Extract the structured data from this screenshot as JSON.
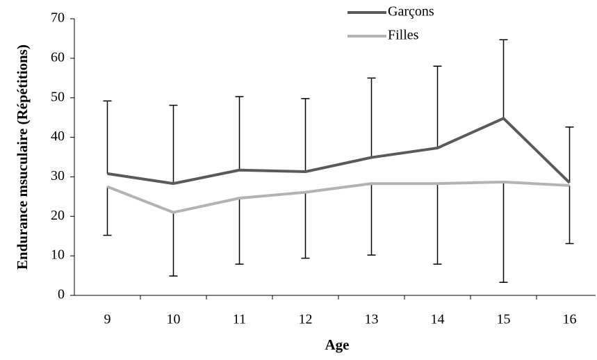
{
  "chart_data": {
    "type": "line",
    "x_label": "Age",
    "y_label": "Endurance msuculaire (Répétitions)",
    "categories": [
      "9",
      "10",
      "11",
      "12",
      "13",
      "14",
      "15",
      "16"
    ],
    "series": [
      {
        "name": "Garçons",
        "color": "#5a5a5a",
        "error_direction": "up",
        "values": [
          30.8,
          28.3,
          31.7,
          31.3,
          34.9,
          37.3,
          44.8,
          28.5
        ],
        "errors": [
          18.4,
          19.8,
          18.6,
          18.5,
          20.1,
          20.7,
          19.9,
          14.1
        ]
      },
      {
        "name": "Filles",
        "color": "#b3b3b3",
        "error_direction": "down",
        "values": [
          27.5,
          21.0,
          24.6,
          26.1,
          28.3,
          28.3,
          28.7,
          27.8
        ],
        "errors": [
          12.3,
          16.1,
          16.7,
          16.7,
          18.1,
          20.4,
          25.4,
          14.7
        ]
      }
    ],
    "ylim": [
      0,
      70
    ],
    "yticks": [
      0,
      10,
      20,
      30,
      40,
      50,
      60,
      70
    ],
    "legend": "top"
  }
}
